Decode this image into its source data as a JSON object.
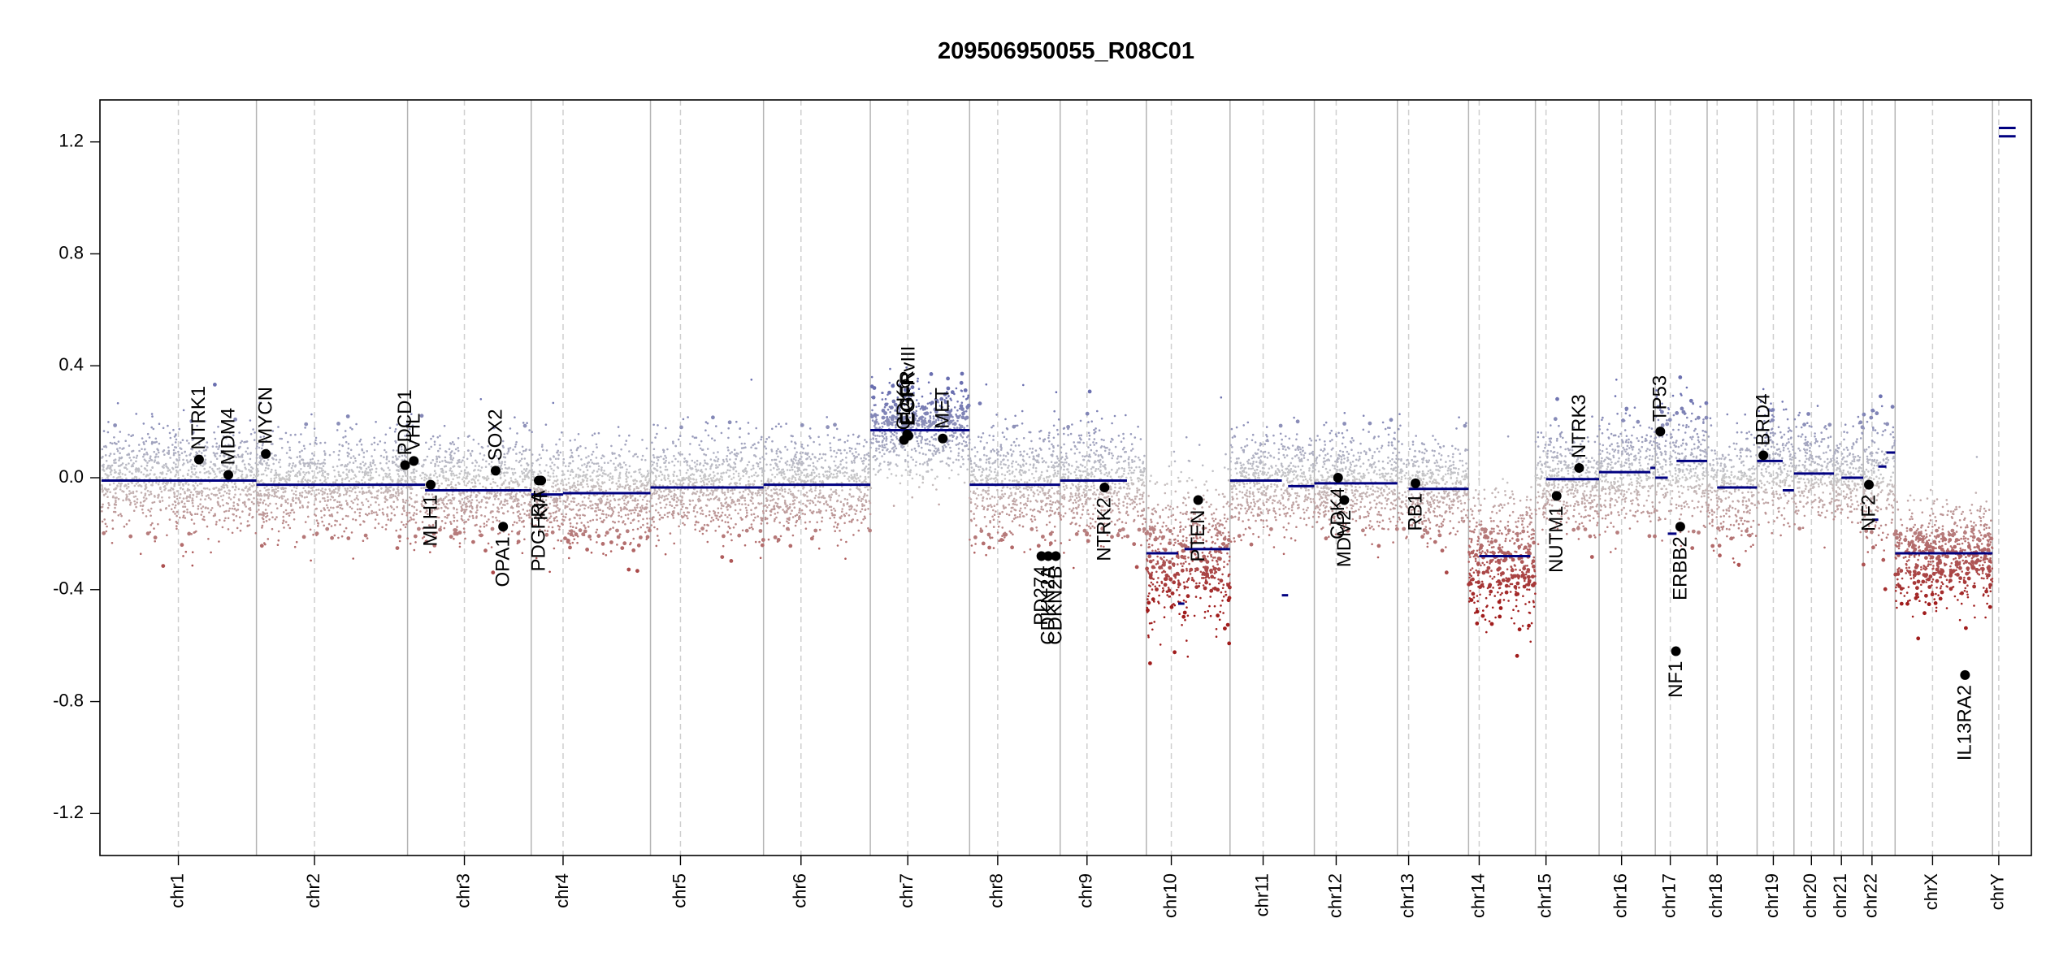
{
  "chart_data": {
    "type": "scatter",
    "title": "209506950055_R08C01",
    "xlabel": "",
    "ylabel": "",
    "ylim": [
      -1.35,
      1.35
    ],
    "y_ticks": [
      -1.2,
      -0.8,
      -0.4,
      0.0,
      0.4,
      0.8,
      1.2
    ],
    "y_tick_labels": [
      "-1.2",
      "-0.8",
      "-0.4",
      "0.0",
      "0.4",
      "0.8",
      "1.2"
    ],
    "grid": false,
    "legend": "none",
    "colors": {
      "gain": "#6a6fb0",
      "neutral": "#c8c8c8",
      "loss": "#a01c1c",
      "segment": "#000080",
      "gene_point": "#000000",
      "chrom_boundary": "#b4b4b4",
      "centromere": "#cfcfcf"
    },
    "chromosomes": [
      {
        "name": "chr1",
        "start": 0,
        "end": 248,
        "centromere": 123
      },
      {
        "name": "chr2",
        "start": 248,
        "end": 490,
        "centromere": 341
      },
      {
        "name": "chr3",
        "start": 490,
        "end": 688,
        "centromere": 581
      },
      {
        "name": "chr4",
        "start": 688,
        "end": 879,
        "centromere": 739
      },
      {
        "name": "chr5",
        "start": 879,
        "end": 1060,
        "centromere": 927
      },
      {
        "name": "chr6",
        "start": 1060,
        "end": 1231,
        "centromere": 1120
      },
      {
        "name": "chr7",
        "start": 1231,
        "end": 1390,
        "centromere": 1291
      },
      {
        "name": "chr8",
        "start": 1390,
        "end": 1535,
        "centromere": 1435
      },
      {
        "name": "chr9",
        "start": 1535,
        "end": 1673,
        "centromere": 1578
      },
      {
        "name": "chr10",
        "start": 1673,
        "end": 1807,
        "centromere": 1713
      },
      {
        "name": "chr11",
        "start": 1807,
        "end": 1942,
        "centromere": 1860
      },
      {
        "name": "chr12",
        "start": 1942,
        "end": 2075,
        "centromere": 1977
      },
      {
        "name": "chr13",
        "start": 2075,
        "end": 2189,
        "centromere": 2093
      },
      {
        "name": "chr14",
        "start": 2189,
        "end": 2296,
        "centromere": 2206
      },
      {
        "name": "chr15",
        "start": 2296,
        "end": 2398,
        "centromere": 2313
      },
      {
        "name": "chr16",
        "start": 2398,
        "end": 2488,
        "centromere": 2434
      },
      {
        "name": "chr17",
        "start": 2488,
        "end": 2571,
        "centromere": 2512
      },
      {
        "name": "chr18",
        "start": 2571,
        "end": 2651,
        "centromere": 2587
      },
      {
        "name": "chr19",
        "start": 2651,
        "end": 2710,
        "centromere": 2677
      },
      {
        "name": "chr20",
        "start": 2710,
        "end": 2774,
        "centromere": 2738
      },
      {
        "name": "chr21",
        "start": 2774,
        "end": 2821,
        "centromere": 2786
      },
      {
        "name": "chr22",
        "start": 2821,
        "end": 2872,
        "centromere": 2835
      },
      {
        "name": "chrX",
        "start": 2872,
        "end": 3028,
        "centromere": 2932
      },
      {
        "name": "chrY",
        "start": 3028,
        "end": 3085,
        "centromere": 3038
      }
    ],
    "segments": [
      {
        "chr": "chr1",
        "x0": 0,
        "x1": 248,
        "y": -0.01
      },
      {
        "chr": "chr2",
        "x0": 248,
        "x1": 490,
        "y": -0.025
      },
      {
        "chr": "chr3",
        "x0": 490,
        "x1": 518,
        "y": -0.025
      },
      {
        "chr": "chr3",
        "x0": 518,
        "x1": 688,
        "y": -0.045
      },
      {
        "chr": "chr4",
        "x0": 688,
        "x1": 739,
        "y": -0.06
      },
      {
        "chr": "chr4",
        "x0": 739,
        "x1": 879,
        "y": -0.055
      },
      {
        "chr": "chr5",
        "x0": 879,
        "x1": 1060,
        "y": -0.035
      },
      {
        "chr": "chr6",
        "x0": 1060,
        "x1": 1231,
        "y": -0.025
      },
      {
        "chr": "chr7",
        "x0": 1231,
        "x1": 1390,
        "y": 0.17
      },
      {
        "chr": "chr8",
        "x0": 1390,
        "x1": 1535,
        "y": -0.025
      },
      {
        "chr": "chr9",
        "x0": 1535,
        "x1": 1642,
        "y": -0.01
      },
      {
        "chr": "chr10",
        "x0": 1673,
        "x1": 1724,
        "y": -0.27
      },
      {
        "chr": "chr10",
        "x0": 1724,
        "x1": 1734,
        "y": -0.45
      },
      {
        "chr": "chr10",
        "x0": 1734,
        "x1": 1807,
        "y": -0.255
      },
      {
        "chr": "chr11",
        "x0": 1807,
        "x1": 1890,
        "y": -0.01
      },
      {
        "chr": "chr11",
        "x0": 1890,
        "x1": 1900,
        "y": -0.42
      },
      {
        "chr": "chr11",
        "x0": 1900,
        "x1": 1942,
        "y": -0.03
      },
      {
        "chr": "chr12",
        "x0": 1942,
        "x1": 2075,
        "y": -0.02
      },
      {
        "chr": "chr13",
        "x0": 2093,
        "x1": 2189,
        "y": -0.04
      },
      {
        "chr": "chr14",
        "x0": 2206,
        "x1": 2288,
        "y": -0.28
      },
      {
        "chr": "chr15",
        "x0": 2313,
        "x1": 2398,
        "y": -0.005
      },
      {
        "chr": "chr16",
        "x0": 2398,
        "x1": 2480,
        "y": 0.02
      },
      {
        "chr": "chr16",
        "x0": 2480,
        "x1": 2488,
        "y": 0.035
      },
      {
        "chr": "chr17",
        "x0": 2488,
        "x1": 2508,
        "y": 0.0
      },
      {
        "chr": "chr17",
        "x0": 2508,
        "x1": 2522,
        "y": -0.2
      },
      {
        "chr": "chr17",
        "x0": 2522,
        "x1": 2571,
        "y": 0.06
      },
      {
        "chr": "chr18",
        "x0": 2587,
        "x1": 2651,
        "y": -0.035
      },
      {
        "chr": "chr19",
        "x0": 2651,
        "x1": 2692,
        "y": 0.06
      },
      {
        "chr": "chr19",
        "x0": 2692,
        "x1": 2710,
        "y": -0.045
      },
      {
        "chr": "chr20",
        "x0": 2710,
        "x1": 2774,
        "y": 0.015
      },
      {
        "chr": "chr21",
        "x0": 2786,
        "x1": 2821,
        "y": 0.0
      },
      {
        "chr": "chr22",
        "x0": 2835,
        "x1": 2845,
        "y": -0.15
      },
      {
        "chr": "chr22",
        "x0": 2845,
        "x1": 2858,
        "y": 0.04
      },
      {
        "chr": "chr22",
        "x0": 2858,
        "x1": 2872,
        "y": 0.09
      },
      {
        "chr": "chrX",
        "x0": 2872,
        "x1": 3028,
        "y": -0.27
      },
      {
        "chr": "chrY",
        "x0": 3038,
        "x1": 3065,
        "y": 1.22
      },
      {
        "chr": "chrY",
        "x0": 3038,
        "x1": 3065,
        "y": 1.25
      }
    ],
    "genes": [
      {
        "label": "NTRK1",
        "x": 156,
        "y": 0.065,
        "side": "above"
      },
      {
        "label": "MDM4",
        "x": 203,
        "y": 0.01,
        "side": "above"
      },
      {
        "label": "MYCN",
        "x": 263,
        "y": 0.085,
        "side": "above"
      },
      {
        "label": "PDCD1",
        "x": 486,
        "y": 0.045,
        "side": "above"
      },
      {
        "label": "VHL",
        "x": 500,
        "y": 0.06,
        "side": "above"
      },
      {
        "label": "MLH1",
        "x": 527,
        "y": -0.025,
        "side": "below"
      },
      {
        "label": "SOX2",
        "x": 631,
        "y": 0.025,
        "side": "above"
      },
      {
        "label": "OPA1",
        "x": 643,
        "y": -0.175,
        "side": "below"
      },
      {
        "label": "PDGFRA",
        "x": 700,
        "y": -0.01,
        "side": "below"
      },
      {
        "label": "KIT",
        "x": 704,
        "y": -0.01,
        "side": "below"
      },
      {
        "label": "CDK6",
        "x": 1285,
        "y": 0.135,
        "side": "above"
      },
      {
        "label": "EGFR",
        "x": 1290,
        "y": 0.155,
        "side": "above"
      },
      {
        "label": "EGFRvIII",
        "x": 1292,
        "y": 0.15,
        "side": "above"
      },
      {
        "label": "MET",
        "x": 1347,
        "y": 0.14,
        "side": "above"
      },
      {
        "label": "CDKN2A",
        "x": 1516,
        "y": -0.28,
        "side": "below"
      },
      {
        "label": "CDKN2B",
        "x": 1528,
        "y": -0.28,
        "side": "below"
      },
      {
        "label": "PD274",
        "x": 1505,
        "y": -0.28,
        "side": "below"
      },
      {
        "label": "NTRK2",
        "x": 1606,
        "y": -0.035,
        "side": "below"
      },
      {
        "label": "PTEN",
        "x": 1756,
        "y": -0.08,
        "side": "below"
      },
      {
        "label": "CDK4",
        "x": 1980,
        "y": 0.0,
        "side": "below"
      },
      {
        "label": "MDM2",
        "x": 1990,
        "y": -0.08,
        "side": "below"
      },
      {
        "label": "RB1",
        "x": 2104,
        "y": -0.02,
        "side": "below"
      },
      {
        "label": "NUTM1",
        "x": 2330,
        "y": -0.065,
        "side": "below"
      },
      {
        "label": "NTRK3",
        "x": 2366,
        "y": 0.035,
        "side": "above"
      },
      {
        "label": "TP53",
        "x": 2496,
        "y": 0.165,
        "side": "above"
      },
      {
        "label": "NF1",
        "x": 2521,
        "y": -0.62,
        "side": "below"
      },
      {
        "label": "ERBB2",
        "x": 2528,
        "y": -0.175,
        "side": "below"
      },
      {
        "label": "BRD4",
        "x": 2661,
        "y": 0.08,
        "side": "above"
      },
      {
        "label": "NF2",
        "x": 2830,
        "y": -0.025,
        "side": "below"
      },
      {
        "label": "IL13RA2",
        "x": 2984,
        "y": -0.705,
        "side": "below"
      }
    ],
    "probe_density": [
      {
        "chr": "chr1",
        "mean": -0.01,
        "sd": 0.09
      },
      {
        "chr": "chr2",
        "mean": -0.025,
        "sd": 0.09
      },
      {
        "chr": "chr3",
        "mean": -0.04,
        "sd": 0.09
      },
      {
        "chr": "chr4",
        "mean": -0.055,
        "sd": 0.09
      },
      {
        "chr": "chr5",
        "mean": -0.035,
        "sd": 0.09
      },
      {
        "chr": "chr6",
        "mean": -0.025,
        "sd": 0.09
      },
      {
        "chr": "chr7",
        "mean": 0.17,
        "sd": 0.08
      },
      {
        "chr": "chr8",
        "mean": -0.025,
        "sd": 0.1
      },
      {
        "chr": "chr9",
        "mean": -0.01,
        "sd": 0.1
      },
      {
        "chr": "chr10",
        "mean": -0.27,
        "sd": 0.13
      },
      {
        "chr": "chr11",
        "mean": -0.02,
        "sd": 0.09
      },
      {
        "chr": "chr12",
        "mean": -0.02,
        "sd": 0.09
      },
      {
        "chr": "chr13",
        "mean": -0.04,
        "sd": 0.09
      },
      {
        "chr": "chr14",
        "mean": -0.28,
        "sd": 0.12
      },
      {
        "chr": "chr15",
        "mean": -0.005,
        "sd": 0.09
      },
      {
        "chr": "chr16",
        "mean": 0.02,
        "sd": 0.1
      },
      {
        "chr": "chr17",
        "mean": 0.04,
        "sd": 0.1
      },
      {
        "chr": "chr18",
        "mean": -0.035,
        "sd": 0.1
      },
      {
        "chr": "chr19",
        "mean": 0.05,
        "sd": 0.1
      },
      {
        "chr": "chr20",
        "mean": 0.015,
        "sd": 0.09
      },
      {
        "chr": "chr21",
        "mean": 0.0,
        "sd": 0.09
      },
      {
        "chr": "chr22",
        "mean": 0.0,
        "sd": 0.12
      },
      {
        "chr": "chrX",
        "mean": -0.27,
        "sd": 0.09
      },
      {
        "chr": "chrY",
        "mean": 0.0,
        "sd": 0.0
      }
    ]
  }
}
